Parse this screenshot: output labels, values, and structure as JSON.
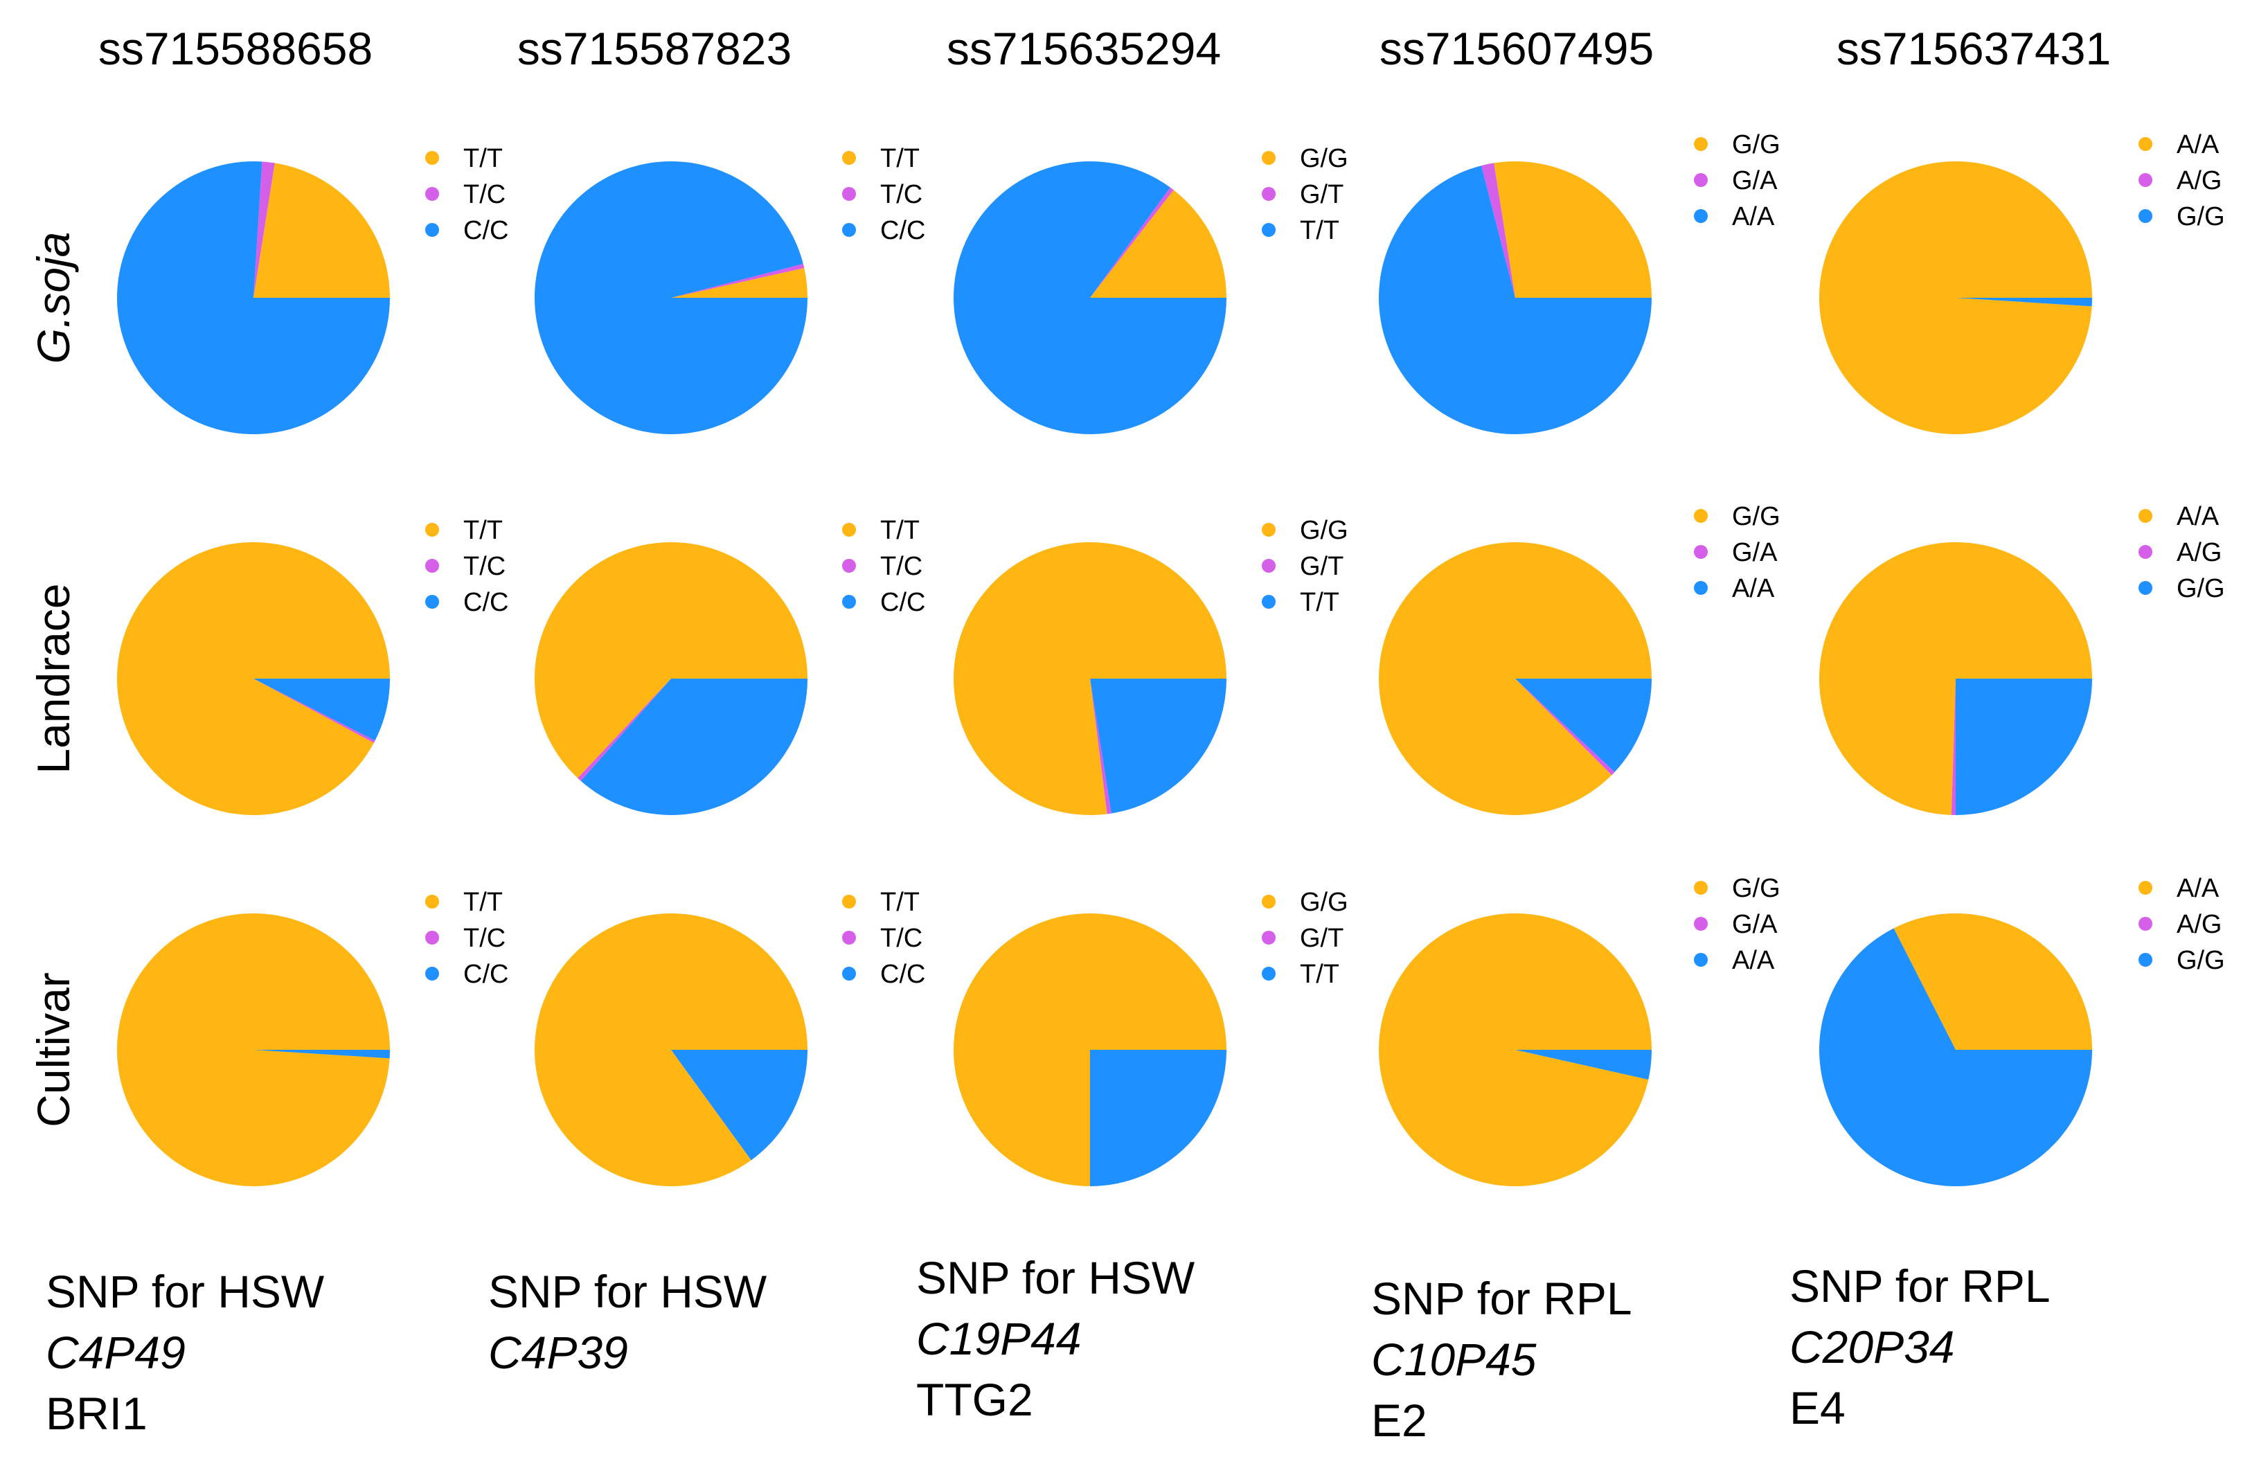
{
  "colors": {
    "first": "#FFB612",
    "second": "#D65FEA",
    "third": "#1E90FF"
  },
  "row_labels": [
    "G.soja",
    "Landrace",
    "Cultivar"
  ],
  "chart_data": {
    "type": "pie",
    "columns": [
      {
        "title": "ss715588658",
        "legend": [
          "T/T",
          "T/C",
          "C/C"
        ],
        "footer": {
          "line1": "SNP for HSW",
          "line2": "C4P49",
          "line3": "BRI1"
        },
        "pies": [
          {
            "population": "G.soja",
            "values": [
              22.5,
              1.5,
              76.0
            ]
          },
          {
            "population": "Landrace",
            "values": [
              92.2,
              0.3,
              7.5
            ]
          },
          {
            "population": "Cultivar",
            "values": [
              99.0,
              0.0,
              1.0
            ]
          }
        ]
      },
      {
        "title": "ss715587823",
        "legend": [
          "T/T",
          "T/C",
          "C/C"
        ],
        "footer": {
          "line1": "SNP for HSW",
          "line2": "C4P39",
          "line3": ""
        },
        "pies": [
          {
            "population": "G.soja",
            "values": [
              3.5,
              0.5,
              96.0
            ]
          },
          {
            "population": "Landrace",
            "values": [
              63.0,
              0.5,
              36.5
            ]
          },
          {
            "population": "Cultivar",
            "values": [
              85.0,
              0.0,
              15.0
            ]
          }
        ]
      },
      {
        "title": "ss715635294",
        "legend": [
          "G/G",
          "G/T",
          "T/T"
        ],
        "footer": {
          "line1": "SNP for HSW",
          "line2": "C19P44",
          "line3": "TTG2"
        },
        "pies": [
          {
            "population": "G.soja",
            "values": [
              14.5,
              0.5,
              85.0
            ]
          },
          {
            "population": "Landrace",
            "values": [
              77.0,
              0.5,
              22.5
            ]
          },
          {
            "population": "Cultivar",
            "values": [
              75.0,
              0.0,
              25.0
            ]
          }
        ]
      },
      {
        "title": "ss715607495",
        "legend": [
          "G/G",
          "G/A",
          "A/A"
        ],
        "footer": {
          "line1": "SNP for RPL",
          "line2": "C10P45",
          "line3": "E2"
        },
        "pies": [
          {
            "population": "G.soja",
            "values": [
              27.5,
              1.5,
              71.0
            ]
          },
          {
            "population": "Landrace",
            "values": [
              87.5,
              0.5,
              12.0
            ]
          },
          {
            "population": "Cultivar",
            "values": [
              96.5,
              0.0,
              3.5
            ]
          }
        ]
      },
      {
        "title": "ss715637431",
        "legend": [
          "A/A",
          "A/G",
          "G/G"
        ],
        "footer": {
          "line1": "SNP for RPL",
          "line2": "C20P34",
          "line3": "E4"
        },
        "pies": [
          {
            "population": "G.soja",
            "values": [
              99.0,
              0.0,
              1.0
            ]
          },
          {
            "population": "Landrace",
            "values": [
              74.5,
              0.5,
              25.0
            ]
          },
          {
            "population": "Cultivar",
            "values": [
              32.5,
              0.0,
              67.5
            ]
          }
        ]
      }
    ]
  }
}
